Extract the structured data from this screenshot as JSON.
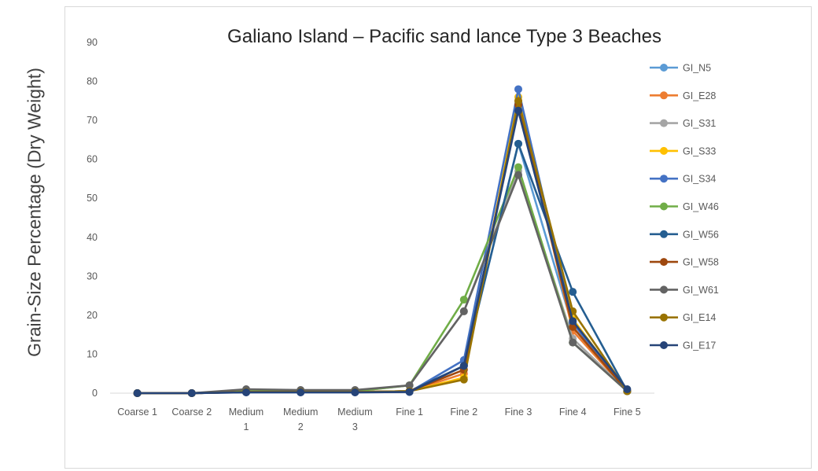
{
  "chart_data": {
    "type": "line",
    "title": "Galiano  Island – Pacific sand lance  Type 3 Beaches",
    "xlabel": "",
    "ylabel": "Grain-Size Percentage (Dry Weight)",
    "ylim": [
      0,
      90
    ],
    "yticks": [
      0,
      10,
      20,
      30,
      40,
      50,
      60,
      70,
      80,
      90
    ],
    "grid": false,
    "legend_position": "right",
    "categories": [
      [
        "Coarse 1"
      ],
      [
        "Coarse 2"
      ],
      [
        "Medium",
        "1"
      ],
      [
        "Medium",
        "2"
      ],
      [
        "Medium",
        "3"
      ],
      [
        "Fine 1"
      ],
      [
        "Fine 2"
      ],
      [
        "Fine 3"
      ],
      [
        "Fine 4"
      ],
      [
        "Fine 5"
      ]
    ],
    "series": [
      {
        "name": "GI_N5",
        "color": "#5b9bd5",
        "values": [
          0,
          0,
          0.3,
          0.3,
          0.3,
          0.5,
          7,
          64,
          17,
          0.5
        ]
      },
      {
        "name": "GI_E28",
        "color": "#ed7d31",
        "values": [
          0,
          0,
          0.3,
          0.3,
          0.3,
          0.5,
          5,
          75,
          16,
          0.5
        ]
      },
      {
        "name": "GI_S31",
        "color": "#a5a5a5",
        "values": [
          0,
          0,
          0.5,
          0.5,
          0.5,
          2,
          21,
          57,
          14,
          0.5
        ]
      },
      {
        "name": "GI_S33",
        "color": "#ffc000",
        "values": [
          0,
          0,
          0.3,
          0.3,
          0.3,
          0.5,
          4,
          76,
          19,
          0.5
        ]
      },
      {
        "name": "GI_S34",
        "color": "#4472c4",
        "values": [
          0,
          0,
          0.2,
          0.2,
          0.2,
          0.3,
          8.5,
          78,
          18,
          0.5
        ]
      },
      {
        "name": "GI_W46",
        "color": "#70ad47",
        "values": [
          0,
          0,
          0.5,
          0.5,
          0.5,
          2,
          24,
          58,
          13,
          0.5
        ]
      },
      {
        "name": "GI_W56",
        "color": "#255e91",
        "values": [
          0,
          0,
          0.3,
          0.3,
          0.3,
          0.5,
          7,
          64,
          26,
          0.5
        ]
      },
      {
        "name": "GI_W58",
        "color": "#9e480e",
        "values": [
          0,
          0,
          0.3,
          0.3,
          0.3,
          0.5,
          6,
          74,
          17,
          0.5
        ]
      },
      {
        "name": "GI_W61",
        "color": "#636363",
        "values": [
          0,
          0,
          1,
          0.8,
          0.8,
          2,
          21,
          56,
          13,
          0.5
        ]
      },
      {
        "name": "GI_E14",
        "color": "#997300",
        "values": [
          0,
          0,
          0.3,
          0.3,
          0.3,
          0.5,
          3.5,
          75,
          21,
          0.5
        ]
      },
      {
        "name": "GI_E17",
        "color": "#264478",
        "values": [
          0,
          0,
          0.2,
          0.2,
          0.2,
          0.3,
          7,
          72.5,
          18.5,
          1
        ]
      }
    ]
  }
}
